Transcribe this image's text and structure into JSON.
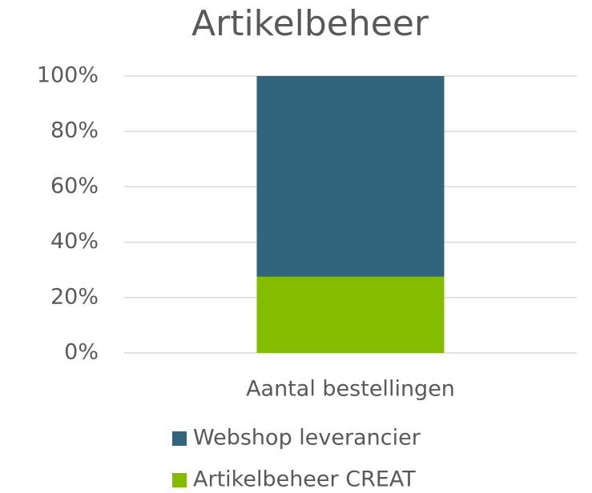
{
  "chart_data": {
    "type": "stacked_bar",
    "title": "Artikelbeheer",
    "categories": [
      "Aantal bestellingen"
    ],
    "series": [
      {
        "name": "Artikelbeheer CREAT",
        "color": "#84bd00",
        "values": [
          27.5
        ]
      },
      {
        "name": "Webshop leverancier",
        "color": "#31657e",
        "values": [
          72.5
        ]
      }
    ],
    "ylim": [
      0,
      100
    ],
    "yticks": [
      {
        "value": 0,
        "label": "0%"
      },
      {
        "value": 20,
        "label": "20%"
      },
      {
        "value": 40,
        "label": "40%"
      },
      {
        "value": 60,
        "label": "60%"
      },
      {
        "value": 80,
        "label": "80%"
      },
      {
        "value": 100,
        "label": "100%"
      }
    ],
    "grid": true,
    "legend": "bottom"
  }
}
